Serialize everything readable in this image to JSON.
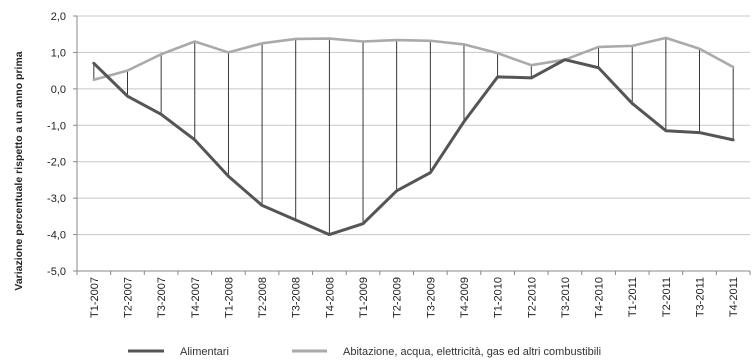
{
  "chart_data": {
    "type": "line",
    "title": "",
    "xlabel": "",
    "ylabel": "Variazione percentuale rispetto a un anno prima",
    "ylim": [
      -5.0,
      2.0
    ],
    "y_ticks": [
      "2,0",
      "1,0",
      "0,0",
      "-1,0",
      "-2,0",
      "-3,0",
      "-4,0",
      "-5,0"
    ],
    "y_tick_values": [
      2,
      1,
      0,
      -1,
      -2,
      -3,
      -4,
      -5
    ],
    "categories": [
      "T1-2007",
      "T2-2007",
      "T3-2007",
      "T4-2007",
      "T1-2008",
      "T2-2008",
      "T3-2008",
      "T4-2008",
      "T1-2009",
      "T2-2009",
      "T3-2009",
      "T4-2009",
      "T1-2010",
      "T2-2010",
      "T3-2010",
      "T4-2010",
      "T1-2011",
      "T2-2011",
      "T3-2011",
      "T4-2011"
    ],
    "grid": true,
    "legend_position": "bottom",
    "drop_lines_between_series": true,
    "series": [
      {
        "name": "Alimentari",
        "color": "#555555",
        "values": [
          0.7,
          -0.2,
          -0.7,
          -1.4,
          -2.4,
          -3.2,
          -3.6,
          -4.0,
          -3.7,
          -2.8,
          -2.3,
          -0.9,
          0.33,
          0.3,
          0.8,
          0.58,
          -0.4,
          -1.15,
          -1.2,
          -1.4
        ]
      },
      {
        "name": "Abitazione, acqua, elettricità, gas ed altri combustibili",
        "color": "#aaaaaa",
        "values": [
          0.25,
          0.5,
          0.95,
          1.3,
          1.0,
          1.25,
          1.37,
          1.38,
          1.3,
          1.34,
          1.32,
          1.22,
          0.98,
          0.65,
          0.8,
          1.15,
          1.18,
          1.4,
          1.1,
          0.6
        ]
      }
    ]
  }
}
